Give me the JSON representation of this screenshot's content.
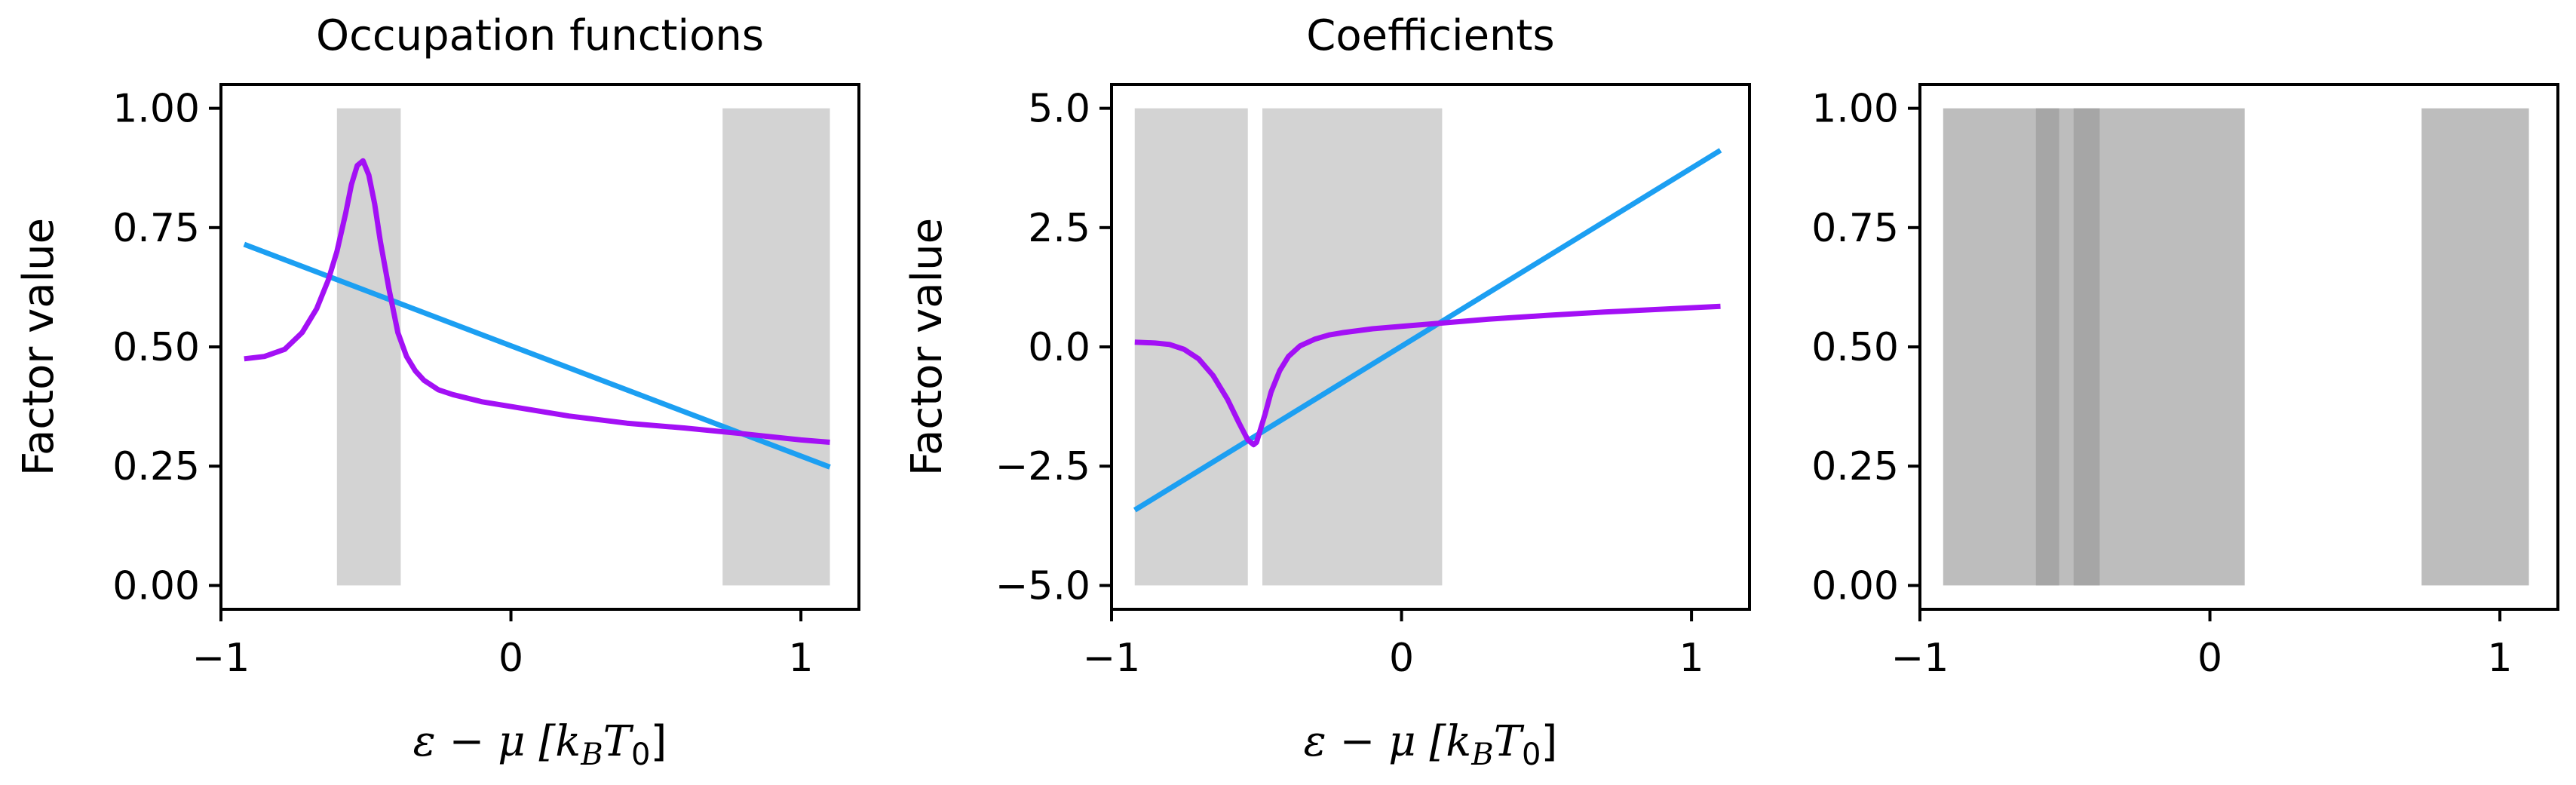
{
  "chart_data": [
    {
      "type": "line",
      "title": "Occupation functions",
      "xlabel_parts": [
        "ε − μ [",
        "k",
        "B",
        "T",
        "0",
        "]"
      ],
      "ylabel": "Factor value",
      "xlim": [
        -1.0,
        1.2
      ],
      "ylim": [
        -0.05,
        1.05
      ],
      "xticks": [
        -1,
        0,
        1
      ],
      "xtick_labels": [
        "−1",
        "0",
        "1"
      ],
      "yticks": [
        0.0,
        0.25,
        0.5,
        0.75,
        1.0
      ],
      "ytick_labels": [
        "0.00",
        "0.25",
        "0.50",
        "0.75",
        "1.00"
      ],
      "shaded_regions": [
        {
          "x0": -0.6,
          "x1": -0.38,
          "y0": 0.0,
          "y1": 1.0,
          "color": "#d3d3d3"
        },
        {
          "x0": 0.73,
          "x1": 1.1,
          "y0": 0.0,
          "y1": 1.0,
          "color": "#d3d3d3"
        }
      ],
      "series": [
        {
          "color": "#1c9ff2",
          "x": [
            -0.92,
            1.1
          ],
          "y": [
            0.715,
            0.248
          ]
        },
        {
          "color": "#a310f5",
          "x": [
            -0.92,
            -0.85,
            -0.78,
            -0.72,
            -0.67,
            -0.63,
            -0.6,
            -0.57,
            -0.55,
            -0.53,
            -0.51,
            -0.49,
            -0.47,
            -0.45,
            -0.42,
            -0.39,
            -0.36,
            -0.33,
            -0.3,
            -0.25,
            -0.2,
            -0.1,
            0.0,
            0.2,
            0.4,
            0.6,
            0.8,
            1.0,
            1.1
          ],
          "y": [
            0.475,
            0.48,
            0.495,
            0.53,
            0.58,
            0.64,
            0.7,
            0.78,
            0.84,
            0.88,
            0.89,
            0.86,
            0.8,
            0.72,
            0.62,
            0.53,
            0.48,
            0.45,
            0.43,
            0.41,
            0.4,
            0.385,
            0.375,
            0.355,
            0.34,
            0.33,
            0.318,
            0.305,
            0.3
          ]
        }
      ]
    },
    {
      "type": "line",
      "title": "Coefficients",
      "xlabel_parts": [
        "ε − μ [",
        "k",
        "B",
        "T",
        "0",
        "]"
      ],
      "ylabel": "Factor value",
      "xlim": [
        -1.0,
        1.2
      ],
      "ylim": [
        -5.5,
        5.5
      ],
      "xticks": [
        -1,
        0,
        1
      ],
      "xtick_labels": [
        "−1",
        "0",
        "1"
      ],
      "yticks": [
        -5.0,
        -2.5,
        0.0,
        2.5,
        5.0
      ],
      "ytick_labels": [
        "−5.0",
        "−2.5",
        "0.0",
        "2.5",
        "5.0"
      ],
      "shaded_regions": [
        {
          "x0": -0.92,
          "x1": -0.53,
          "y0": -5.0,
          "y1": 5.0,
          "color": "#d3d3d3"
        },
        {
          "x0": -0.48,
          "x1": 0.14,
          "y0": -5.0,
          "y1": 5.0,
          "color": "#d3d3d3"
        }
      ],
      "series": [
        {
          "color": "#1c9ff2",
          "x": [
            -0.92,
            1.1
          ],
          "y": [
            -3.42,
            4.12
          ]
        },
        {
          "color": "#a310f5",
          "x": [
            -0.92,
            -0.85,
            -0.8,
            -0.75,
            -0.7,
            -0.65,
            -0.6,
            -0.56,
            -0.53,
            -0.51,
            -0.5,
            -0.49,
            -0.47,
            -0.45,
            -0.42,
            -0.39,
            -0.35,
            -0.3,
            -0.25,
            -0.2,
            -0.1,
            0.0,
            0.14,
            0.3,
            0.5,
            0.7,
            0.9,
            1.1
          ],
          "y": [
            0.1,
            0.08,
            0.05,
            -0.05,
            -0.25,
            -0.6,
            -1.1,
            -1.6,
            -1.95,
            -2.05,
            -2.0,
            -1.8,
            -1.4,
            -0.95,
            -0.5,
            -0.2,
            0.02,
            0.16,
            0.25,
            0.3,
            0.38,
            0.43,
            0.5,
            0.58,
            0.66,
            0.73,
            0.79,
            0.85
          ]
        }
      ]
    },
    {
      "type": "area",
      "title": "",
      "xlabel_parts": [],
      "ylabel": "",
      "xlim": [
        -1.0,
        1.2
      ],
      "ylim": [
        -0.05,
        1.05
      ],
      "xticks": [
        -1,
        0,
        1
      ],
      "xtick_labels": [
        "−1",
        "0",
        "1"
      ],
      "yticks": [
        0.0,
        0.25,
        0.5,
        0.75,
        1.0
      ],
      "ytick_labels": [
        "0.00",
        "0.25",
        "0.50",
        "0.75",
        "1.00"
      ],
      "shaded_regions": [
        {
          "x0": -0.92,
          "x1": 0.12,
          "y0": 0.0,
          "y1": 1.0,
          "color": "#bdbdbd"
        },
        {
          "x0": -0.6,
          "x1": -0.52,
          "y0": 0.0,
          "y1": 1.0,
          "color": "#a6a6a6"
        },
        {
          "x0": -0.47,
          "x1": -0.38,
          "y0": 0.0,
          "y1": 1.0,
          "color": "#a6a6a6"
        },
        {
          "x0": 0.73,
          "x1": 1.1,
          "y0": 0.0,
          "y1": 1.0,
          "color": "#bdbdbd"
        }
      ],
      "series": []
    }
  ]
}
